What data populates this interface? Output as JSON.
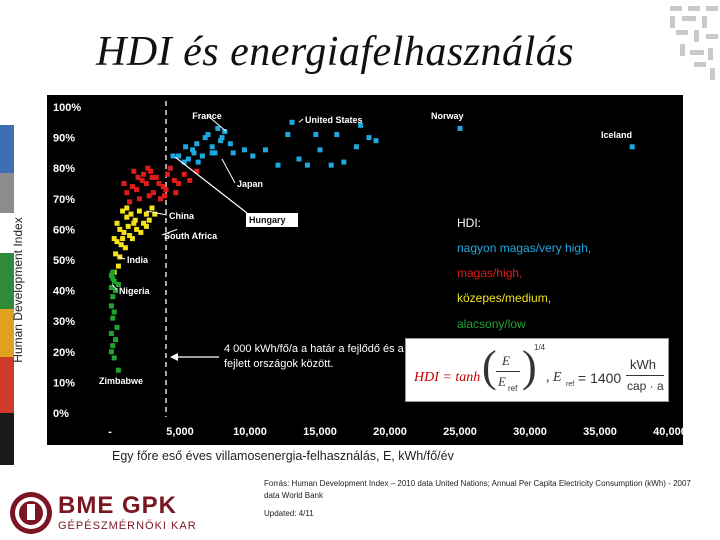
{
  "slide": {
    "title": "HDI és energiafelhasználás",
    "y_axis_label": "Human Development Index",
    "x_axis_label": "Egy főre eső éves villamosenergia-felhasználás, E, kWh/fő/év",
    "source": "Forrás: Human Development Index – 2010 data United Nations; Annual Per Capita Electricity Consumption (kWh) - 2007 data World Bank",
    "updated": "Updated: 4/11",
    "logo_main": "BME GPK",
    "logo_sub": "GÉPÉSZMÉRNÖKI KAR"
  },
  "legend": {
    "heading": "HDI:",
    "very_high": "nagyon magas/very high,",
    "high": "magas/high,",
    "medium": "közepes/medium,",
    "low": "alacsony/low"
  },
  "annotation": {
    "line1": "4 000 kWh/fő/a a határ a fejlődő és a",
    "line2": "fejlett országok között."
  },
  "formula": {
    "lhs": "HDI = tanh",
    "e": "E",
    "e_ref": "E",
    "ref_sub": "ref",
    "exponent": "1/4",
    "rhs": ", E",
    "rhs_value": "= 1400",
    "unit_top": "kWh",
    "unit_bottom": "cap · a"
  },
  "colors": {
    "very_high": "#1ea8e0",
    "high": "#e01b1b",
    "medium": "#f3e21a",
    "low": "#22a331",
    "plot_bg": "#000000",
    "sidebar": [
      "#3e6fb5",
      "#8c8c8c",
      "#8c8c8c",
      "#2e8b3a",
      "#e0a020",
      "#d03a2a",
      "#1a1a1a"
    ]
  },
  "chart_data": {
    "type": "scatter",
    "xlabel": "Egy főre eső éves villamosenergia-felhasználás, E, kWh/fő/év",
    "ylabel": "Human Development Index",
    "xlim": [
      -1500,
      40500
    ],
    "ylim": [
      0,
      100
    ],
    "x_ticks": [
      "-",
      "5,000",
      "10,000",
      "15,000",
      "20,000",
      "25,000",
      "30,000",
      "35,000",
      "40,000"
    ],
    "x_tick_values": [
      0,
      5000,
      10000,
      15000,
      20000,
      25000,
      30000,
      35000,
      40000
    ],
    "y_ticks": [
      "0%",
      "10%",
      "20%",
      "30%",
      "40%",
      "50%",
      "60%",
      "70%",
      "80%",
      "90%",
      "100%"
    ],
    "y_tick_values": [
      0,
      10,
      20,
      30,
      40,
      50,
      60,
      70,
      80,
      90,
      100
    ],
    "threshold_x": 4000,
    "grid": false,
    "series": [
      {
        "name": "nagyon magas/very high",
        "color": "#1ea8e0",
        "points": [
          [
            6200,
            88
          ],
          [
            6800,
            90
          ],
          [
            7300,
            87
          ],
          [
            7900,
            89
          ],
          [
            8200,
            92
          ],
          [
            7500,
            85
          ],
          [
            6600,
            84
          ],
          [
            5900,
            86
          ],
          [
            8600,
            88
          ],
          [
            7000,
            91
          ],
          [
            7700,
            93
          ],
          [
            5600,
            83
          ],
          [
            6300,
            82
          ],
          [
            4900,
            84
          ],
          [
            6000,
            85
          ],
          [
            5400,
            87
          ],
          [
            7300,
            85
          ],
          [
            12700,
            91
          ],
          [
            13500,
            83
          ],
          [
            14700,
            91
          ],
          [
            15000,
            86
          ],
          [
            15800,
            81
          ],
          [
            16700,
            82
          ],
          [
            16200,
            91
          ],
          [
            17900,
            94
          ],
          [
            18500,
            90
          ],
          [
            19000,
            89
          ],
          [
            25000,
            93
          ],
          [
            17600,
            87
          ],
          [
            9600,
            86
          ],
          [
            10200,
            84
          ],
          [
            14100,
            81
          ],
          [
            37300,
            87
          ],
          [
            8000,
            90
          ],
          [
            5300,
            82
          ],
          [
            4500,
            84
          ],
          [
            11100,
            86
          ],
          [
            12000,
            81
          ],
          [
            13000,
            95
          ],
          [
            8800,
            85
          ]
        ]
      },
      {
        "name": "magas/high",
        "color": "#e01b1b",
        "points": [
          [
            1600,
            74
          ],
          [
            2000,
            77
          ],
          [
            2400,
            78
          ],
          [
            2900,
            79
          ],
          [
            3300,
            77
          ],
          [
            3500,
            75
          ],
          [
            4100,
            78
          ],
          [
            4600,
            76
          ],
          [
            1900,
            73
          ],
          [
            2600,
            75
          ],
          [
            3100,
            72
          ],
          [
            3800,
            74
          ],
          [
            4300,
            80
          ],
          [
            5300,
            78
          ],
          [
            1200,
            72
          ],
          [
            2100,
            70
          ],
          [
            2800,
            71
          ],
          [
            3600,
            70
          ],
          [
            4900,
            75
          ],
          [
            5700,
            76
          ],
          [
            6200,
            79
          ],
          [
            1000,
            75
          ],
          [
            2300,
            76
          ],
          [
            3000,
            77
          ],
          [
            1700,
            79
          ],
          [
            4000,
            73
          ],
          [
            2700,
            80
          ],
          [
            3900,
            71
          ],
          [
            1400,
            69
          ],
          [
            4700,
            72
          ]
        ]
      },
      {
        "name": "közepes/medium",
        "color": "#f3e21a",
        "points": [
          [
            900,
            66
          ],
          [
            1200,
            64
          ],
          [
            1500,
            65
          ],
          [
            1800,
            63
          ],
          [
            2100,
            66
          ],
          [
            2400,
            62
          ],
          [
            2600,
            65
          ],
          [
            700,
            60
          ],
          [
            1000,
            59
          ],
          [
            1300,
            61
          ],
          [
            1600,
            57
          ],
          [
            1900,
            60
          ],
          [
            500,
            56
          ],
          [
            800,
            55
          ],
          [
            1100,
            54
          ],
          [
            400,
            52
          ],
          [
            600,
            48
          ],
          [
            300,
            46
          ],
          [
            700,
            51
          ],
          [
            900,
            57
          ],
          [
            2200,
            59
          ],
          [
            2600,
            61
          ],
          [
            1400,
            58
          ],
          [
            2800,
            63
          ],
          [
            3000,
            67
          ],
          [
            3200,
            65
          ],
          [
            500,
            62
          ],
          [
            1200,
            67
          ],
          [
            300,
            57
          ],
          [
            1700,
            62
          ]
        ]
      },
      {
        "name": "alacsony/low",
        "color": "#22a331",
        "points": [
          [
            200,
            46
          ],
          [
            300,
            43
          ],
          [
            100,
            41
          ],
          [
            400,
            40
          ],
          [
            200,
            38
          ],
          [
            100,
            35
          ],
          [
            300,
            33
          ],
          [
            200,
            31
          ],
          [
            500,
            28
          ],
          [
            100,
            26
          ],
          [
            400,
            24
          ],
          [
            200,
            22
          ],
          [
            100,
            20
          ],
          [
            300,
            18
          ],
          [
            600,
            14
          ],
          [
            100,
            45
          ],
          [
            200,
            44
          ],
          [
            600,
            42
          ]
        ]
      }
    ],
    "annotations": [
      {
        "label": "France",
        "x": 8300,
        "y": 92
      },
      {
        "label": "United States",
        "x": 13500,
        "y": 95
      },
      {
        "label": "Norway",
        "x": 25000,
        "y": 93
      },
      {
        "label": "Iceland",
        "x": 37300,
        "y": 87
      },
      {
        "label": "Japan",
        "x": 8000,
        "y": 83
      },
      {
        "label": "China",
        "x": 2600,
        "y": 66
      },
      {
        "label": "Hungary",
        "x": 3900,
        "y": 81
      },
      {
        "label": "South Africa",
        "x": 4800,
        "y": 60
      },
      {
        "label": "India",
        "x": 600,
        "y": 51
      },
      {
        "label": "Nigeria",
        "x": 150,
        "y": 42
      },
      {
        "label": "Zimbabwe",
        "x": 600,
        "y": 14
      }
    ]
  }
}
